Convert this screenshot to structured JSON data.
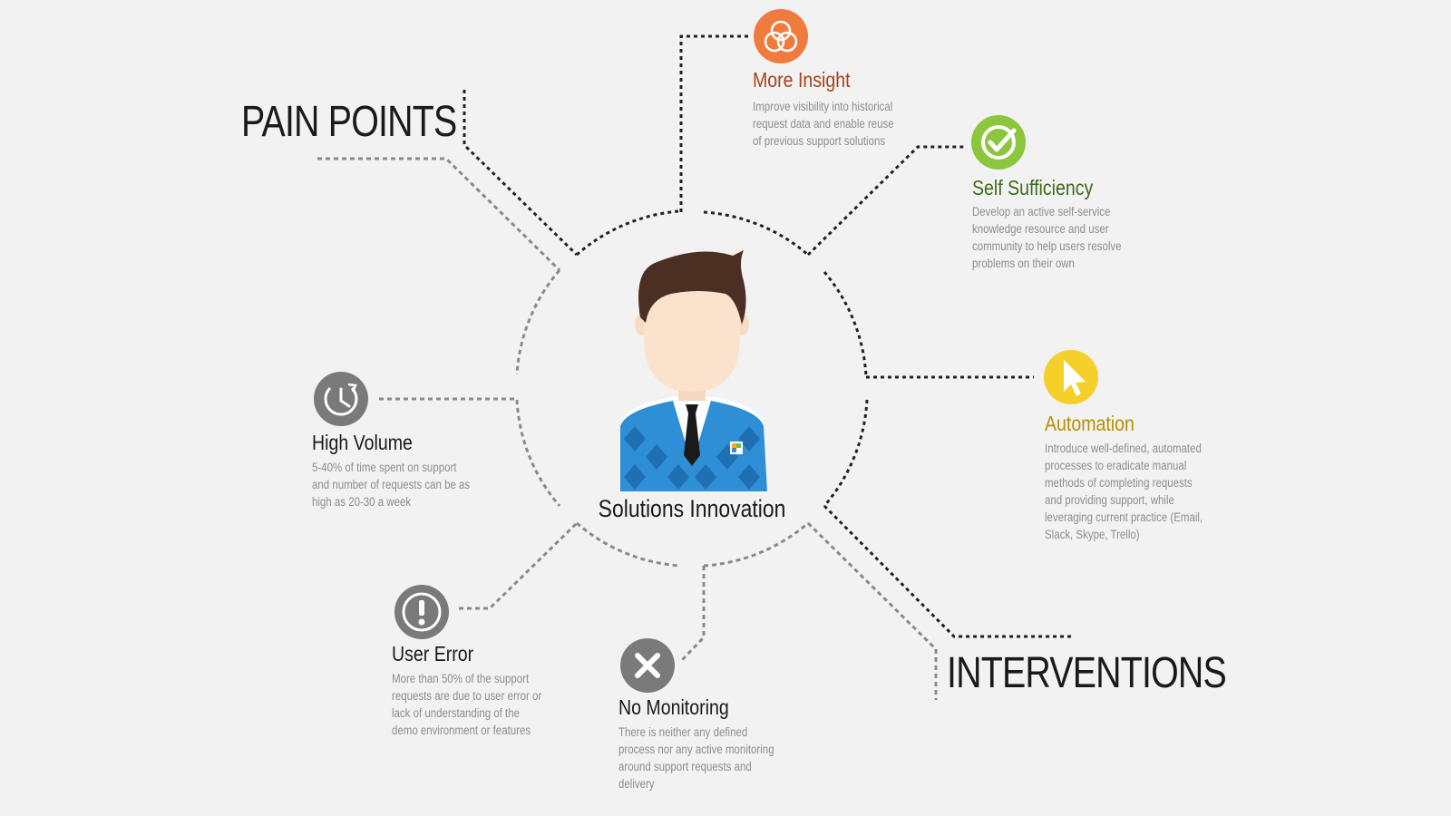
{
  "page": {
    "pain_title": "PAIN POINTS",
    "interventions_title": "INTERVENTIONS",
    "center_label": "Solutions Innovation"
  },
  "pain_points": [
    {
      "title": "High Volume",
      "desc": "5-40% of time spent on support\nand number of requests can be as\nhigh as 20-30 a week",
      "icon": "clock-icon",
      "color": "#7a7a7a"
    },
    {
      "title": "User Error",
      "desc": "More than 50% of the support\nrequests are due to user error or\nlack of understanding of the\ndemo environment or features",
      "icon": "exclamation-icon",
      "color": "#7a7a7a"
    },
    {
      "title": "No Monitoring",
      "desc": "There is neither any defined\nprocess nor any active monitoring\naround support requests and\ndelivery",
      "icon": "x-icon",
      "color": "#7a7a7a"
    }
  ],
  "interventions": [
    {
      "title": "More Insight",
      "desc": "Improve visibility into historical\nrequest data and enable reuse\nof previous support solutions",
      "icon": "venn-icon",
      "color": "#f07b3f",
      "title_color": "#a8401a"
    },
    {
      "title": "Self Sufficiency",
      "desc": "Develop an active self-service\nknowledge resource and user\ncommunity to help users resolve\nproblems on their own",
      "icon": "check-icon",
      "color": "#8cc63f",
      "title_color": "#3e6a1a"
    },
    {
      "title": "Automation",
      "desc": "Introduce well-defined, automated\nprocesses to eradicate manual\nmethods of completing requests\nand providing support, while\nleveraging current practice (Email,\nSlack, Skype, Trello)",
      "icon": "cursor-icon",
      "color": "#f6d02a",
      "title_color": "#b59000"
    }
  ]
}
